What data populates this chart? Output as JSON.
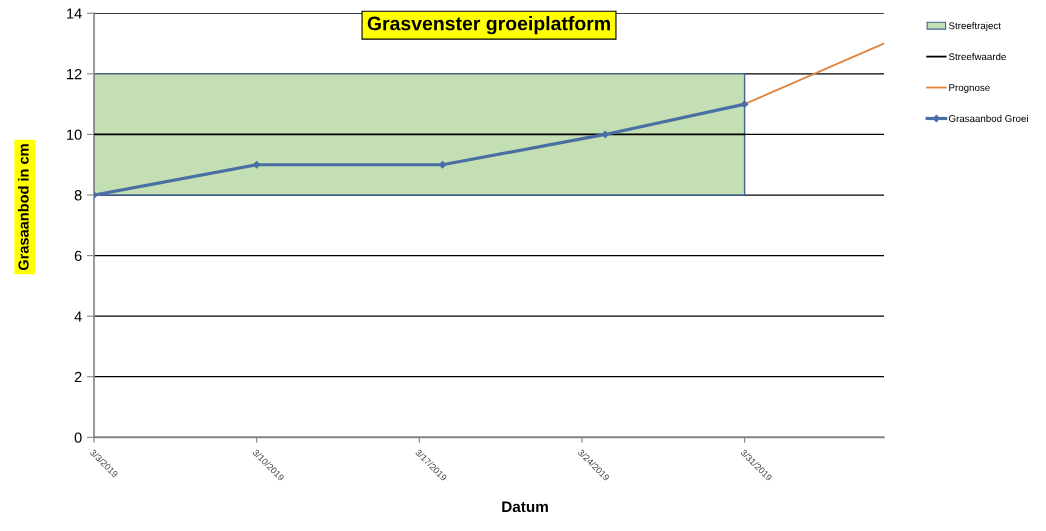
{
  "chart_data": {
    "type": "line",
    "title": "Grasvenster groeiplatform",
    "xlabel": "Datum",
    "ylabel": "Grasaanbod in cm",
    "series": [
      {
        "name": "Streeftraject",
        "type": "area",
        "color": "#c4dfb3",
        "x": [
          "2019-03-03",
          "2019-03-31"
        ],
        "values": [
          null,
          null
        ],
        "lower": [
          8,
          8
        ],
        "upper": [
          12,
          12
        ]
      },
      {
        "name": "Streefwaarde",
        "color": "#000000",
        "x": [
          "2019-03-03",
          "2019-03-31"
        ],
        "values": [
          10,
          10
        ],
        "marker": "none"
      },
      {
        "name": "Prognose",
        "color": "#e0823c",
        "x": [
          "2019-03-31",
          "2019-04-06"
        ],
        "values": [
          11,
          13
        ],
        "marker": "none"
      },
      {
        "name": "Grasaanbod Groei",
        "color": "#4a6fa5",
        "x": [
          "2019-03-03",
          "2019-03-10",
          "2019-03-18",
          "2019-03-25",
          "2019-03-31"
        ],
        "values": [
          8,
          9,
          9,
          10,
          11
        ],
        "marker": "diamond"
      }
    ],
    "xlim": [
      "2019-03-03",
      "2019-04-06"
    ],
    "xticks": [
      {
        "value": "2019-03-03",
        "label": "3/3/2019"
      },
      {
        "value": "2019-03-10",
        "label": "3/10/2019"
      },
      {
        "value": "2019-03-17",
        "label": "3/17/2019"
      },
      {
        "value": "2019-03-24",
        "label": "3/24/2019"
      },
      {
        "value": "2019-03-31",
        "label": "3/31/2019"
      }
    ],
    "ylim": [
      0,
      14
    ],
    "yticks": [
      0,
      2,
      4,
      6,
      8,
      10,
      12,
      14
    ],
    "grid": "y",
    "legend": "right"
  }
}
